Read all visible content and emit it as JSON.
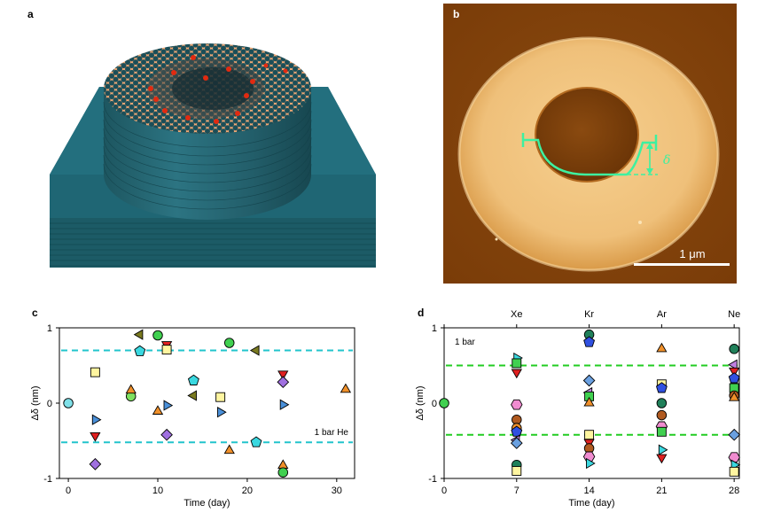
{
  "panels": {
    "a": {
      "label": "a"
    },
    "b": {
      "label": "b",
      "delta_symbol": "δ",
      "scale_bar_label": "1 μm"
    },
    "c": {
      "label": "c"
    },
    "d": {
      "label": "d"
    }
  },
  "chart_data": [
    {
      "type": "scatter",
      "panel": "c",
      "xlabel": "Time (day)",
      "ylabel": "Δδ (nm)",
      "xlim": [
        -1,
        32
      ],
      "ylim": [
        -1,
        1
      ],
      "xticks": [
        0,
        10,
        20,
        30
      ],
      "yticks": [
        -1,
        0,
        1
      ],
      "xtick_labels": [
        "0",
        "10",
        "20",
        "30"
      ],
      "ytick_labels": [
        "-1",
        "0",
        "1"
      ],
      "annotation": "1 bar He",
      "reference_lines": [
        0.7,
        -0.52
      ],
      "reference_line_color": "#22c4cc",
      "points": [
        {
          "x": 0,
          "y": 0,
          "marker": "circle",
          "color": "#7fe0e8"
        },
        {
          "x": 3,
          "y": 0.41,
          "marker": "square",
          "color": "#fff5a0"
        },
        {
          "x": 3,
          "y": -0.22,
          "marker": "triangle-right",
          "color": "#4a90d9"
        },
        {
          "x": 3,
          "y": -0.43,
          "marker": "triangle-down",
          "color": "#e02020"
        },
        {
          "x": 3,
          "y": -0.81,
          "marker": "diamond",
          "color": "#a070e0"
        },
        {
          "x": 7,
          "y": 0.09,
          "marker": "circle",
          "color": "#7ee060"
        },
        {
          "x": 7,
          "y": 0.17,
          "marker": "triangle-up",
          "color": "#f0902a"
        },
        {
          "x": 8,
          "y": 0.91,
          "marker": "triangle-left",
          "color": "#7a7a20"
        },
        {
          "x": 8,
          "y": 0.69,
          "marker": "pentagon",
          "color": "#3ad8e0"
        },
        {
          "x": 10,
          "y": 0.9,
          "marker": "circle",
          "color": "#40d050"
        },
        {
          "x": 10,
          "y": -0.11,
          "marker": "triangle-up",
          "color": "#f0902a"
        },
        {
          "x": 11,
          "y": 0.78,
          "marker": "triangle-down",
          "color": "#e02020"
        },
        {
          "x": 11,
          "y": 0.71,
          "marker": "square",
          "color": "#fff5a0"
        },
        {
          "x": 11,
          "y": -0.03,
          "marker": "triangle-right",
          "color": "#4a90d9"
        },
        {
          "x": 11,
          "y": -0.42,
          "marker": "diamond",
          "color": "#a070e0"
        },
        {
          "x": 14,
          "y": 0.3,
          "marker": "pentagon",
          "color": "#3ad8e0"
        },
        {
          "x": 14,
          "y": 0.1,
          "marker": "triangle-left",
          "color": "#7a7a20"
        },
        {
          "x": 17,
          "y": 0.08,
          "marker": "square",
          "color": "#fff5a0"
        },
        {
          "x": 17,
          "y": -0.12,
          "marker": "triangle-right",
          "color": "#4a90d9"
        },
        {
          "x": 18,
          "y": 0.8,
          "marker": "circle",
          "color": "#40d050"
        },
        {
          "x": 18,
          "y": -0.63,
          "marker": "triangle-up",
          "color": "#f0902a"
        },
        {
          "x": 21,
          "y": 0.7,
          "marker": "triangle-left",
          "color": "#7a7a20"
        },
        {
          "x": 21,
          "y": -0.52,
          "marker": "pentagon",
          "color": "#3ad8e0"
        },
        {
          "x": 24,
          "y": 0.39,
          "marker": "triangle-down",
          "color": "#e02020"
        },
        {
          "x": 24,
          "y": 0.28,
          "marker": "diamond",
          "color": "#a070e0"
        },
        {
          "x": 24,
          "y": -0.02,
          "marker": "triangle-right",
          "color": "#4a90d9"
        },
        {
          "x": 24,
          "y": -0.83,
          "marker": "triangle-up",
          "color": "#f0902a"
        },
        {
          "x": 24,
          "y": -0.92,
          "marker": "circle",
          "color": "#40d050"
        },
        {
          "x": 31,
          "y": 0.18,
          "marker": "triangle-up",
          "color": "#f0902a"
        }
      ]
    },
    {
      "type": "scatter",
      "panel": "d",
      "xlabel": "Time (day)",
      "ylabel": "Δδ (nm)",
      "xlim": [
        0,
        28.5
      ],
      "ylim": [
        -1,
        1
      ],
      "xticks": [
        0,
        7,
        14,
        21,
        28
      ],
      "yticks": [
        -1,
        0,
        1
      ],
      "xtick_labels": [
        "0",
        "7",
        "14",
        "21",
        "28"
      ],
      "ytick_labels": [
        "-1",
        "0",
        "1"
      ],
      "top_labels": [
        {
          "x": 7,
          "text": "Xe"
        },
        {
          "x": 14,
          "text": "Kr"
        },
        {
          "x": 21,
          "text": "Ar"
        },
        {
          "x": 28,
          "text": "Ne"
        }
      ],
      "annotation": "1 bar",
      "reference_lines": [
        0.5,
        -0.42
      ],
      "reference_line_color": "#22cc22",
      "points": [
        {
          "x": 0,
          "y": 0,
          "marker": "circle",
          "color": "#40d050"
        },
        {
          "x": 7,
          "y": 0.6,
          "marker": "triangle-right",
          "color": "#3ad8e0"
        },
        {
          "x": 7,
          "y": 0.53,
          "marker": "square",
          "color": "#40d050"
        },
        {
          "x": 7,
          "y": 0.41,
          "marker": "triangle-down",
          "color": "#e02020"
        },
        {
          "x": 7,
          "y": -0.02,
          "marker": "hexagon",
          "color": "#f08cd0"
        },
        {
          "x": 7,
          "y": -0.22,
          "marker": "circle",
          "color": "#b05a20"
        },
        {
          "x": 7,
          "y": -0.33,
          "marker": "circle",
          "color": "#f0902a"
        },
        {
          "x": 7,
          "y": -0.38,
          "marker": "pentagon",
          "color": "#3050e0"
        },
        {
          "x": 7,
          "y": -0.49,
          "marker": "triangle-left",
          "color": "#c080e0"
        },
        {
          "x": 7,
          "y": -0.53,
          "marker": "diamond",
          "color": "#6aa0e0"
        },
        {
          "x": 7,
          "y": -0.82,
          "marker": "circle",
          "color": "#20805a"
        },
        {
          "x": 7,
          "y": -0.9,
          "marker": "square",
          "color": "#fff5a0"
        },
        {
          "x": 14,
          "y": 0.91,
          "marker": "circle",
          "color": "#20805a"
        },
        {
          "x": 14,
          "y": 0.81,
          "marker": "pentagon",
          "color": "#3050e0"
        },
        {
          "x": 14,
          "y": 0.3,
          "marker": "diamond",
          "color": "#6aa0e0"
        },
        {
          "x": 14,
          "y": 0.14,
          "marker": "triangle-left",
          "color": "#c080e0"
        },
        {
          "x": 14,
          "y": 0.09,
          "marker": "square",
          "color": "#40d050"
        },
        {
          "x": 14,
          "y": 0.0,
          "marker": "triangle-up",
          "color": "#f0902a"
        },
        {
          "x": 14,
          "y": -0.42,
          "marker": "square",
          "color": "#fff5a0"
        },
        {
          "x": 14,
          "y": -0.52,
          "marker": "triangle-down",
          "color": "#e02020"
        },
        {
          "x": 14,
          "y": -0.6,
          "marker": "circle",
          "color": "#b05a20"
        },
        {
          "x": 14,
          "y": -0.71,
          "marker": "hexagon",
          "color": "#f08cd0"
        },
        {
          "x": 14,
          "y": -0.8,
          "marker": "triangle-right",
          "color": "#3ad8e0"
        },
        {
          "x": 21,
          "y": 0.72,
          "marker": "triangle-up",
          "color": "#f0902a"
        },
        {
          "x": 21,
          "y": 0.25,
          "marker": "square",
          "color": "#fff5a0"
        },
        {
          "x": 21,
          "y": 0.2,
          "marker": "pentagon",
          "color": "#3050e0"
        },
        {
          "x": 21,
          "y": 0.0,
          "marker": "circle",
          "color": "#20805a"
        },
        {
          "x": 21,
          "y": -0.16,
          "marker": "circle",
          "color": "#b05a20"
        },
        {
          "x": 21,
          "y": -0.31,
          "marker": "hexagon",
          "color": "#f08cd0"
        },
        {
          "x": 21,
          "y": -0.38,
          "marker": "square",
          "color": "#40d050"
        },
        {
          "x": 21,
          "y": -0.62,
          "marker": "triangle-right",
          "color": "#3ad8e0"
        },
        {
          "x": 21,
          "y": -0.72,
          "marker": "triangle-down",
          "color": "#e02020"
        },
        {
          "x": 28,
          "y": 0.72,
          "marker": "circle",
          "color": "#20805a"
        },
        {
          "x": 28,
          "y": 0.51,
          "marker": "triangle-left",
          "color": "#c080e0"
        },
        {
          "x": 28,
          "y": 0.43,
          "marker": "triangle-down",
          "color": "#e02020"
        },
        {
          "x": 28,
          "y": 0.33,
          "marker": "pentagon",
          "color": "#3050e0"
        },
        {
          "x": 28,
          "y": 0.2,
          "marker": "square",
          "color": "#40d050"
        },
        {
          "x": 28,
          "y": 0.1,
          "marker": "circle",
          "color": "#b05a20"
        },
        {
          "x": 28,
          "y": 0.07,
          "marker": "triangle-up",
          "color": "#f0902a"
        },
        {
          "x": 28,
          "y": -0.42,
          "marker": "diamond",
          "color": "#6aa0e0"
        },
        {
          "x": 28,
          "y": -0.72,
          "marker": "hexagon",
          "color": "#f08cd0"
        },
        {
          "x": 28,
          "y": -0.82,
          "marker": "triangle-right",
          "color": "#3ad8e0"
        },
        {
          "x": 28,
          "y": -0.91,
          "marker": "square",
          "color": "#fff5a0"
        }
      ]
    }
  ]
}
